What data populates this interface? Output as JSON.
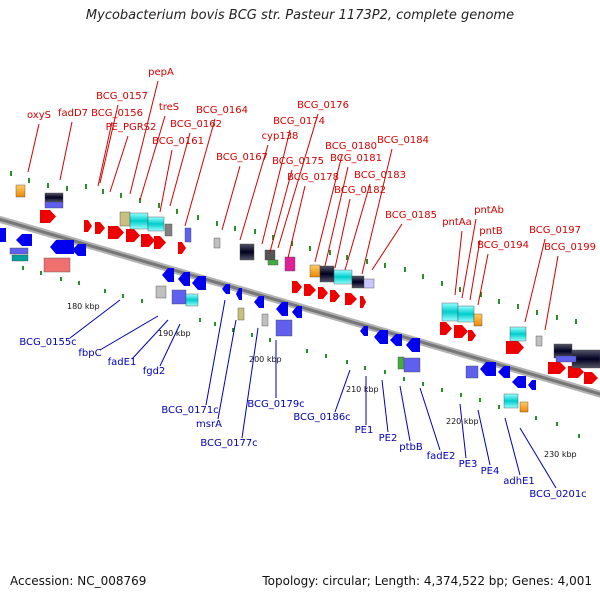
{
  "title": "Mycobacterium bovis BCG str. Pasteur 1173P2, complete genome",
  "footer": {
    "accession": "Accession: NC_008769",
    "summary": "Topology: circular; Length: 4,374,522 bp; Genes: 4,001"
  },
  "colors": {
    "forward_label": "#d40000",
    "reverse_label": "#0000b4",
    "axis": "#888888"
  },
  "ticks": [
    "180 kbp",
    "190 kbp",
    "200 kbp",
    "210 kbp",
    "220 kbp",
    "230 kbp"
  ],
  "forward_labels": [
    "oxyS",
    "fadD7",
    "BCG_0157",
    "BCG_0156",
    "PE_PGRS2",
    "pepA",
    "treS",
    "BCG_0161",
    "BCG_0162",
    "BCG_0164",
    "BCG_0167",
    "cyp138",
    "BCG_0174",
    "BCG_0176",
    "BCG_0175",
    "BCG_0178",
    "BCG_0180",
    "BCG_0181",
    "BCG_0182",
    "BCG_0183",
    "BCG_0184",
    "BCG_0185",
    "pntAa",
    "pntAb",
    "pntB",
    "BCG_0194",
    "BCG_0197",
    "BCG_0199"
  ],
  "reverse_labels": [
    "BCG_0155c",
    "fbpC",
    "fadE1",
    "fgd2",
    "BCG_0171c",
    "msrA",
    "BCG_0177c",
    "BCG_0179c",
    "BCG_0186c",
    "PE1",
    "PE2",
    "ptbB",
    "fadE2",
    "PE3",
    "PE4",
    "adhE1",
    "BCG_0201c"
  ]
}
